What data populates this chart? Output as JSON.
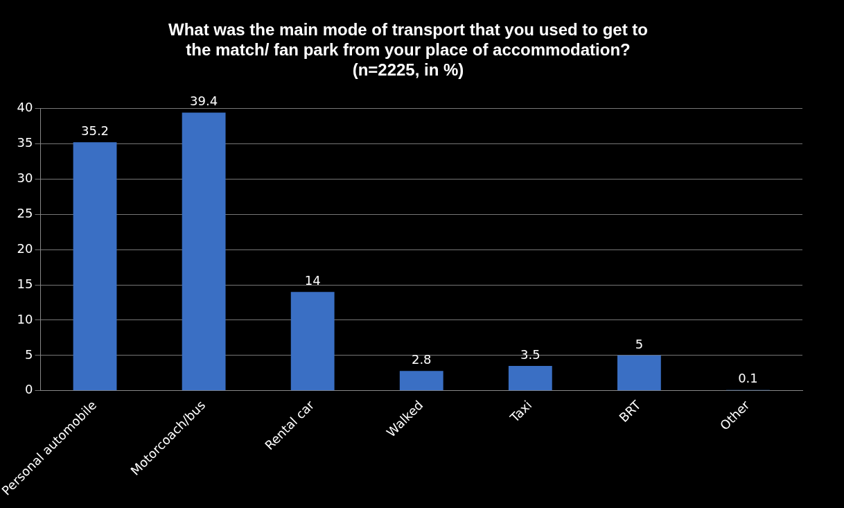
{
  "chart_data": {
    "type": "bar",
    "title": "What was the main mode of transport that you used to get to\nthe match/ fan park from your place of accommodation?\n(n=2225, in %)",
    "categories": [
      "Personal automobile",
      "Motorcoach/bus",
      "Rental car",
      "Walked",
      "Taxi",
      "BRT",
      "Other"
    ],
    "values": [
      35.2,
      39.4,
      14,
      2.8,
      3.5,
      5,
      0.1
    ],
    "color": "#3a6fc4",
    "ylim": [
      0,
      40
    ],
    "yticks": [
      0,
      5,
      10,
      15,
      20,
      25,
      30,
      35,
      40
    ],
    "grid": "y",
    "legend": false,
    "data_labels": true
  }
}
